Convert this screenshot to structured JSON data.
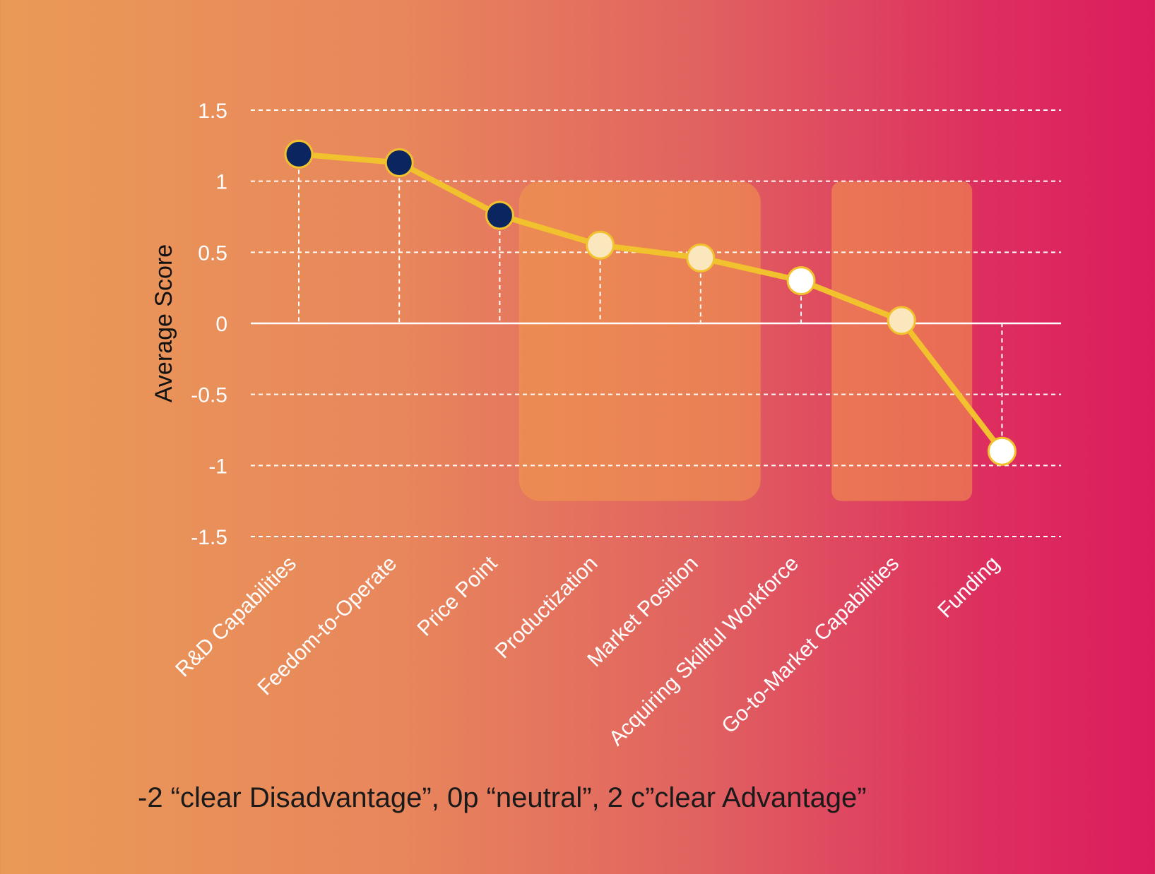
{
  "chart_data": {
    "type": "line",
    "title": "",
    "xlabel": "",
    "ylabel": "Average Score",
    "ylim": [
      -1.5,
      1.5
    ],
    "yticks": [
      "1.5",
      "1",
      "0.5",
      "0",
      "-0.5",
      "-1",
      "-1.5"
    ],
    "grid": true,
    "categories": [
      "R&D Capabilities",
      "Feedom-to-Operate",
      "Price Point",
      "Productization",
      "Market Position",
      "Acquiring Skillful Workforce",
      "Go-to-Market Capabilities",
      "Funding"
    ],
    "values": [
      1.19,
      1.13,
      0.76,
      0.55,
      0.46,
      0.3,
      0.02,
      -0.9
    ],
    "highlight_bands": [
      {
        "from_category": "Productization",
        "to_category": "Market Position",
        "y_range": [
          -1.25,
          1.0
        ]
      },
      {
        "from_category": "Go-to-Market Capabilities",
        "to_category": "Go-to-Market Capabilities",
        "y_range": [
          -1.25,
          1.0
        ]
      }
    ],
    "colors": {
      "line": "#f2c12e",
      "marker_strong": "#0b2560",
      "marker_medium": "#fbe7bd",
      "marker_light": "#ffffff",
      "grid": "#ffffff",
      "band": "#f29a4d",
      "text": "#ffffff",
      "axis_title": "#111111"
    },
    "marker_styles": [
      "strong",
      "strong",
      "strong",
      "medium",
      "medium",
      "light",
      "medium",
      "light"
    ]
  },
  "caption": "-2 “clear Disadvantage”, 0p “neutral”, 2 c”clear Advantage”"
}
